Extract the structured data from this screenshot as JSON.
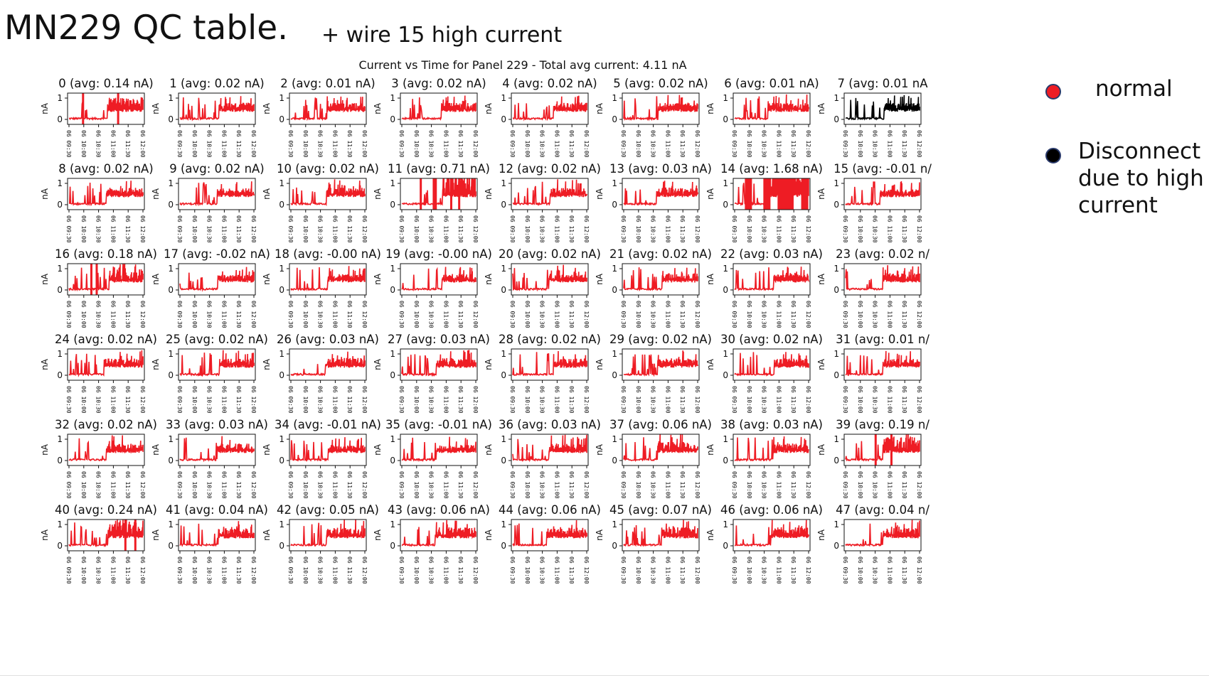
{
  "slide": {
    "title": "MN229 QC table.",
    "note": "+ wire 15 high current"
  },
  "legend": [
    {
      "label": "normal",
      "color": "#ee1c24"
    },
    {
      "label": "Disconnect\ndue to high\ncurrent",
      "color": "#000000"
    }
  ],
  "chart_data": {
    "type": "line",
    "title": "Current vs Time for Panel 229 - Total avg current: 4.11 nA",
    "ylabel": "nA",
    "ylim": [
      0,
      1
    ],
    "yticks": [
      "0",
      "1"
    ],
    "xticks": [
      "06 09:30",
      "06 10:00",
      "06 10:30",
      "06 11:00",
      "06 11:30",
      "06 12:00"
    ],
    "grid": false,
    "wires": [
      {
        "title": "0 (avg: 0.14 nA)",
        "avg": 0.14,
        "color": "#ee1c24"
      },
      {
        "title": "1 (avg: 0.02 nA)",
        "avg": 0.02,
        "color": "#ee1c24"
      },
      {
        "title": "2 (avg: 0.01 nA)",
        "avg": 0.01,
        "color": "#ee1c24"
      },
      {
        "title": "3 (avg: 0.02 nA)",
        "avg": 0.02,
        "color": "#ee1c24"
      },
      {
        "title": "4 (avg: 0.02 nA)",
        "avg": 0.02,
        "color": "#ee1c24"
      },
      {
        "title": "5 (avg: 0.02 nA)",
        "avg": 0.02,
        "color": "#ee1c24"
      },
      {
        "title": "6 (avg: 0.01 nA)",
        "avg": 0.01,
        "color": "#ee1c24"
      },
      {
        "title": "7 (avg: 0.01 nA",
        "avg": 0.01,
        "color": "#000000"
      },
      {
        "title": "8 (avg: 0.02 nA)",
        "avg": 0.02,
        "color": "#ee1c24"
      },
      {
        "title": "9 (avg: 0.02 nA)",
        "avg": 0.02,
        "color": "#ee1c24"
      },
      {
        "title": "10 (avg: 0.02 nA)",
        "avg": 0.02,
        "color": "#ee1c24"
      },
      {
        "title": "11 (avg: 0.71 nA)",
        "avg": 0.71,
        "color": "#ee1c24"
      },
      {
        "title": "12 (avg: 0.02 nA)",
        "avg": 0.02,
        "color": "#ee1c24"
      },
      {
        "title": "13 (avg: 0.03 nA)",
        "avg": 0.03,
        "color": "#ee1c24"
      },
      {
        "title": "14 (avg: 1.68 nA)",
        "avg": 1.68,
        "color": "#ee1c24"
      },
      {
        "title": "15 (avg: -0.01 n/",
        "avg": -0.01,
        "color": "#ee1c24"
      },
      {
        "title": "16 (avg: 0.18 nA)",
        "avg": 0.18,
        "color": "#ee1c24"
      },
      {
        "title": "17 (avg: -0.02 nA)",
        "avg": -0.02,
        "color": "#ee1c24"
      },
      {
        "title": "18 (avg: -0.00 nA)",
        "avg": -0.0,
        "color": "#ee1c24"
      },
      {
        "title": "19 (avg: -0.00 nA)",
        "avg": -0.0,
        "color": "#ee1c24"
      },
      {
        "title": "20 (avg: 0.02 nA)",
        "avg": 0.02,
        "color": "#ee1c24"
      },
      {
        "title": "21 (avg: 0.02 nA)",
        "avg": 0.02,
        "color": "#ee1c24"
      },
      {
        "title": "22 (avg: 0.03 nA)",
        "avg": 0.03,
        "color": "#ee1c24"
      },
      {
        "title": "23 (avg: 0.02 n/",
        "avg": 0.02,
        "color": "#ee1c24"
      },
      {
        "title": "24 (avg: 0.02 nA)",
        "avg": 0.02,
        "color": "#ee1c24"
      },
      {
        "title": "25 (avg: 0.02 nA)",
        "avg": 0.02,
        "color": "#ee1c24"
      },
      {
        "title": "26 (avg: 0.03 nA)",
        "avg": 0.03,
        "color": "#ee1c24"
      },
      {
        "title": "27 (avg: 0.03 nA)",
        "avg": 0.03,
        "color": "#ee1c24"
      },
      {
        "title": "28 (avg: 0.02 nA)",
        "avg": 0.02,
        "color": "#ee1c24"
      },
      {
        "title": "29 (avg: 0.02 nA)",
        "avg": 0.02,
        "color": "#ee1c24"
      },
      {
        "title": "30 (avg: 0.02 nA)",
        "avg": 0.02,
        "color": "#ee1c24"
      },
      {
        "title": "31 (avg: 0.01 n/",
        "avg": 0.01,
        "color": "#ee1c24"
      },
      {
        "title": "32 (avg: 0.02 nA)",
        "avg": 0.02,
        "color": "#ee1c24"
      },
      {
        "title": "33 (avg: 0.03 nA)",
        "avg": 0.03,
        "color": "#ee1c24"
      },
      {
        "title": "34 (avg: -0.01 nA)",
        "avg": -0.01,
        "color": "#ee1c24"
      },
      {
        "title": "35 (avg: -0.01 nA)",
        "avg": -0.01,
        "color": "#ee1c24"
      },
      {
        "title": "36 (avg: 0.03 nA)",
        "avg": 0.03,
        "color": "#ee1c24"
      },
      {
        "title": "37 (avg: 0.06 nA)",
        "avg": 0.06,
        "color": "#ee1c24"
      },
      {
        "title": "38 (avg: 0.03 nA)",
        "avg": 0.03,
        "color": "#ee1c24"
      },
      {
        "title": "39 (avg: 0.19 n/",
        "avg": 0.19,
        "color": "#ee1c24"
      },
      {
        "title": "40 (avg: 0.24 nA)",
        "avg": 0.24,
        "color": "#ee1c24"
      },
      {
        "title": "41 (avg: 0.04 nA)",
        "avg": 0.04,
        "color": "#ee1c24"
      },
      {
        "title": "42 (avg: 0.05 nA)",
        "avg": 0.05,
        "color": "#ee1c24"
      },
      {
        "title": "43 (avg: 0.06 nA)",
        "avg": 0.06,
        "color": "#ee1c24"
      },
      {
        "title": "44 (avg: 0.06 nA)",
        "avg": 0.06,
        "color": "#ee1c24"
      },
      {
        "title": "45 (avg: 0.07 nA)",
        "avg": 0.07,
        "color": "#ee1c24"
      },
      {
        "title": "46 (avg: 0.06 nA)",
        "avg": 0.06,
        "color": "#ee1c24"
      },
      {
        "title": "47 (avg: 0.04 n/",
        "avg": 0.04,
        "color": "#ee1c24"
      }
    ]
  }
}
